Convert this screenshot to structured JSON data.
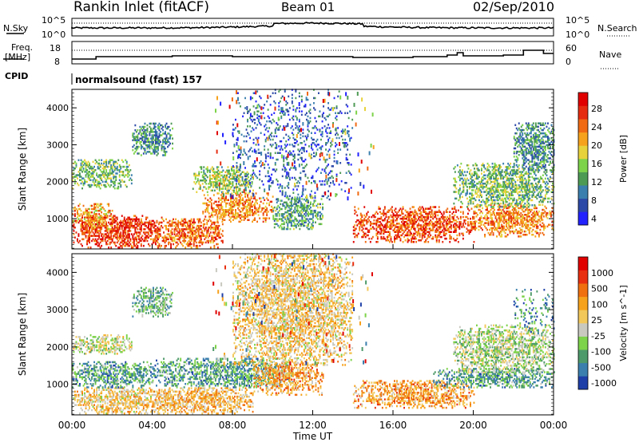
{
  "header": {
    "station": "Rankin Inlet (fitACF)",
    "beam": "Beam 01",
    "date": "02/Sep/2010"
  },
  "top_panels": {
    "nsky_label": "N.Sky",
    "nsky_ticks": [
      "10^5",
      "10^0"
    ],
    "nsearch_label": "N.Search",
    "nsearch_ticks": [
      "10^5",
      "10^0"
    ],
    "freq_label": "Freq.",
    "freq_unit": "[MHz]",
    "freq_ticks": [
      "18",
      "8"
    ],
    "nave_label": "Nave",
    "nave_ticks": [
      "60",
      "0"
    ],
    "cpid_label": "CPID",
    "cpid_text": "normalsound (fast) 157"
  },
  "chart_data": [
    {
      "type": "heatmap",
      "panel": "power",
      "xlabel": "",
      "ylabel": "Slant Range [km]",
      "yticks": [
        "4000",
        "3000",
        "2000",
        "1000"
      ],
      "ylim": [
        180,
        4500
      ],
      "colorbar_label": "Power [dB]",
      "colorbar_ticks": [
        "28",
        "24",
        "20",
        "16",
        "12",
        "8",
        "4"
      ],
      "colors": [
        "#2222ff",
        "#2d49a8",
        "#3a7fae",
        "#4d9a55",
        "#7dd34a",
        "#e8d23c",
        "#f7a21c",
        "#f06a13",
        "#e52c10",
        "#e00000"
      ],
      "blobs": [
        {
          "t0": 0.0,
          "t1": 4.5,
          "r0": 200,
          "r1": 1100,
          "level": 0.85
        },
        {
          "t0": 0.0,
          "t1": 2.0,
          "r0": 700,
          "r1": 1400,
          "level": 0.65
        },
        {
          "t0": 4.0,
          "t1": 7.5,
          "r0": 200,
          "r1": 1000,
          "level": 0.75
        },
        {
          "t0": 6.5,
          "t1": 10.0,
          "r0": 900,
          "r1": 1700,
          "level": 0.7
        },
        {
          "t0": 6.0,
          "t1": 9.0,
          "r0": 1700,
          "r1": 2400,
          "level": 0.45
        },
        {
          "t0": 10.0,
          "t1": 12.5,
          "r0": 700,
          "r1": 1600,
          "level": 0.35
        },
        {
          "t0": 8.0,
          "t1": 14.0,
          "r0": 1500,
          "r1": 4500,
          "level": 0.2
        },
        {
          "t0": 14.0,
          "t1": 20.0,
          "r0": 350,
          "r1": 1300,
          "level": 0.8
        },
        {
          "t0": 20.0,
          "t1": 24.0,
          "r0": 500,
          "r1": 1400,
          "level": 0.7
        },
        {
          "t0": 19.0,
          "t1": 24.0,
          "r0": 1300,
          "r1": 2500,
          "level": 0.4
        },
        {
          "t0": 22.0,
          "t1": 24.0,
          "r0": 2300,
          "r1": 3600,
          "level": 0.3
        },
        {
          "t0": 3.0,
          "t1": 5.0,
          "r0": 2700,
          "r1": 3600,
          "level": 0.3
        },
        {
          "t0": 0.0,
          "t1": 3.0,
          "r0": 1800,
          "r1": 2600,
          "level": 0.4
        }
      ]
    },
    {
      "type": "heatmap",
      "panel": "velocity",
      "xlabel": "Time UT",
      "ylabel": "Slant Range [km]",
      "xticks": [
        "00:00",
        "04:00",
        "08:00",
        "12:00",
        "16:00",
        "20:00",
        "00:00"
      ],
      "yticks": [
        "4000",
        "3000",
        "2000",
        "1000"
      ],
      "ylim": [
        180,
        4500
      ],
      "xlim": [
        0,
        24
      ],
      "colorbar_label": "Velocity [m s^-1]",
      "colorbar_ticks": [
        "1000",
        "500",
        "100",
        "25",
        "-25",
        "-100",
        "-500",
        "-1000"
      ],
      "colors": [
        "#1f3fa8",
        "#3a7fae",
        "#4e9a6a",
        "#7dd34a",
        "#c9c9c0",
        "#f2c85a",
        "#f7a21c",
        "#f07010",
        "#e83010",
        "#e00000"
      ],
      "blobs": [
        {
          "t0": 0.0,
          "t1": 5.0,
          "r0": 200,
          "r1": 900,
          "level": 0.55
        },
        {
          "t0": 0.0,
          "t1": 4.0,
          "r0": 900,
          "r1": 1600,
          "level": 0.25
        },
        {
          "t0": 4.0,
          "t1": 11.0,
          "r0": 900,
          "r1": 1700,
          "level": 0.25
        },
        {
          "t0": 4.0,
          "t1": 9.0,
          "r0": 200,
          "r1": 900,
          "level": 0.6
        },
        {
          "t0": 9.0,
          "t1": 12.5,
          "r0": 700,
          "r1": 1600,
          "level": 0.65
        },
        {
          "t0": 8.0,
          "t1": 14.0,
          "r0": 1500,
          "r1": 4500,
          "level": 0.55
        },
        {
          "t0": 14.0,
          "t1": 20.0,
          "r0": 350,
          "r1": 1100,
          "level": 0.65
        },
        {
          "t0": 18.0,
          "t1": 24.0,
          "r0": 900,
          "r1": 1400,
          "level": 0.25
        },
        {
          "t0": 19.0,
          "t1": 24.0,
          "r0": 1300,
          "r1": 2600,
          "level": 0.4
        },
        {
          "t0": 22.0,
          "t1": 24.0,
          "r0": 2300,
          "r1": 3600,
          "level": 0.2
        },
        {
          "t0": 3.0,
          "t1": 5.0,
          "r0": 2800,
          "r1": 3600,
          "level": 0.3
        },
        {
          "t0": 0.0,
          "t1": 3.0,
          "r0": 1800,
          "r1": 2300,
          "level": 0.45
        }
      ]
    }
  ]
}
